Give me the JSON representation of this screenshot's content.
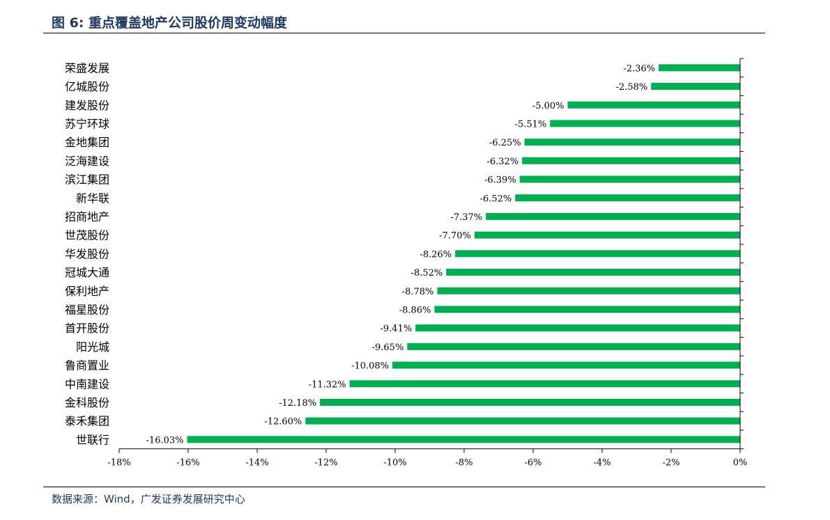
{
  "header": {
    "title": "图 6:  重点覆盖地产公司股价周变动幅度"
  },
  "footer": {
    "source": "数据来源：Wind，广发证券发展研究中心"
  },
  "colors": {
    "bar": "#00b050",
    "title": "#1f3864",
    "axis": "#000000"
  },
  "chart_data": {
    "type": "bar",
    "orientation": "horizontal",
    "categories": [
      "荣盛发展",
      "亿城股份",
      "建发股份",
      "苏宁环球",
      "金地集团",
      "泛海建设",
      "滨江集团",
      "新华联",
      "招商地产",
      "世茂股份",
      "华发股份",
      "冠城大通",
      "保利地产",
      "福星股份",
      "首开股份",
      "阳光城",
      "鲁商置业",
      "中南建设",
      "金科股份",
      "泰禾集团",
      "世联行"
    ],
    "values": [
      -2.36,
      -2.58,
      -5.0,
      -5.51,
      -6.25,
      -6.32,
      -6.39,
      -6.52,
      -7.37,
      -7.7,
      -8.26,
      -8.52,
      -8.78,
      -8.86,
      -9.41,
      -9.65,
      -10.08,
      -11.32,
      -12.18,
      -12.6,
      -16.03
    ],
    "data_labels": [
      "-2.36%",
      "-2.58%",
      "-5.00%",
      "-5.51%",
      "-6.25%",
      "-6.32%",
      "-6.39%",
      "-6.52%",
      "-7.37%",
      "-7.70%",
      "-8.26%",
      "-8.52%",
      "-8.78%",
      "-8.86%",
      "-9.41%",
      "-9.65%",
      "-10.08%",
      "-11.32%",
      "-12.18%",
      "-12.60%",
      "-16.03%"
    ],
    "xlim": [
      -18,
      0
    ],
    "x_ticks": [
      -18,
      -16,
      -14,
      -12,
      -10,
      -8,
      -6,
      -4,
      -2,
      0
    ],
    "x_tick_labels": [
      "-18%",
      "-16%",
      "-14%",
      "-12%",
      "-10%",
      "-8%",
      "-6%",
      "-4%",
      "-2%",
      "0%"
    ],
    "xlabel": "",
    "ylabel": "",
    "grid": false,
    "legend": "none"
  }
}
